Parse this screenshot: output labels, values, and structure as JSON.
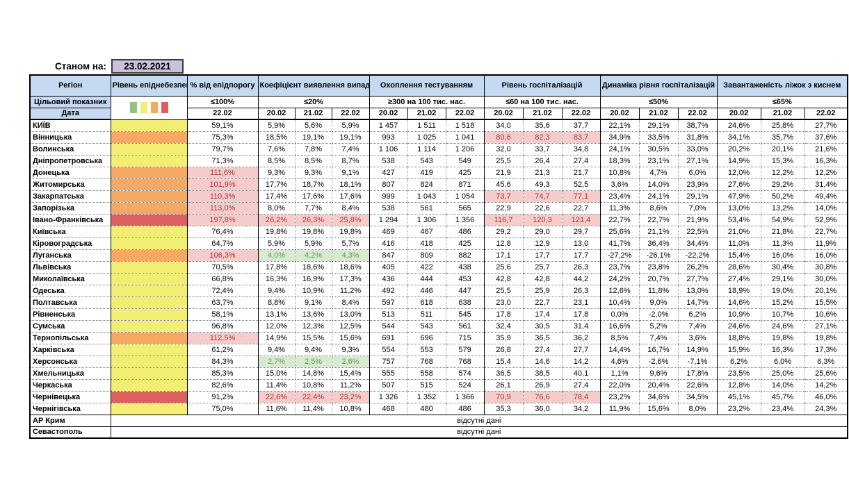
{
  "meta": {
    "as_of_label": "Станом на:",
    "as_of_date": "23.02.2021"
  },
  "colors": {
    "header_blue": "#c5daf0",
    "date_lavender": "#ccc1da",
    "level_yellow": "#f2ee73",
    "level_orange": "#f5a962",
    "level_red": "#dd5f5f",
    "level_green": "#93c47d",
    "alert_bg": "#f4cccc",
    "alert_text": "#b03434",
    "good_bg": "#d9ead3",
    "good_text": "#5f9e4f"
  },
  "table": {
    "region_header": "Регіон",
    "target_row_label": "Цільовий показник",
    "date_row_label": "Дата",
    "legend_colors": [
      "#93c47d",
      "#f2ee73",
      "#f5a962",
      "#dd5f5f"
    ],
    "groups": [
      {
        "title": "Рівень епіднебезпеки",
        "kind": "legend",
        "target": "",
        "dates": []
      },
      {
        "title": "% від епідпорогу",
        "kind": "single",
        "target": "≤100%",
        "dates": [
          "22.02"
        ]
      },
      {
        "title": "Коефіцієнт виявлення випадків інфікування",
        "kind": "triple",
        "target": "≤20%",
        "dates": [
          "20.02",
          "21.02",
          "22.02"
        ]
      },
      {
        "title": "Охоплення тестуванням",
        "kind": "triple",
        "target": "≥300 на 100 тис. нас.",
        "dates": [
          "20.02",
          "21.02",
          "22.02"
        ]
      },
      {
        "title": "Рівень госпіталізацій",
        "kind": "triple",
        "target": "≤60 на 100 тис. нас.",
        "dates": [
          "20.02",
          "21.02",
          "22.02"
        ]
      },
      {
        "title": "Динаміка рівня госпіталізацій",
        "kind": "triple",
        "target": "≤50%",
        "dates": [
          "20.02",
          "21.02",
          "22.02"
        ]
      },
      {
        "title": "Завантаженість ліжок з киснем",
        "kind": "triple",
        "target": "≤65%",
        "dates": [
          "20.02",
          "21.02",
          "22.02"
        ]
      }
    ],
    "rows": [
      {
        "region": "КИЇВ",
        "level": "yellow",
        "threshold": "59,1%",
        "threshold_style": "",
        "detection": [
          "5,9%",
          "5,6%",
          "5,9%"
        ],
        "detection_style": "",
        "testing": [
          "1 457",
          "1 511",
          "1 518"
        ],
        "hosp": [
          "34,0",
          "35,6",
          "37,7"
        ],
        "hosp_style": "",
        "dynamics": [
          "22,1%",
          "29,1%",
          "38,7%"
        ],
        "oxygen": [
          "24,6%",
          "25,8%",
          "27,7%"
        ]
      },
      {
        "region": "Вінницька",
        "level": "orange",
        "threshold": "75,3%",
        "threshold_style": "",
        "detection": [
          "18,5%",
          "19,1%",
          "19,1%"
        ],
        "detection_style": "",
        "testing": [
          "993",
          "1 025",
          "1 041"
        ],
        "hosp": [
          "80,6",
          "82,3",
          "83,7"
        ],
        "hosp_style": "alert",
        "dynamics": [
          "34,9%",
          "33,5%",
          "31,8%"
        ],
        "oxygen": [
          "34,1%",
          "35,7%",
          "37,6%"
        ]
      },
      {
        "region": "Волинська",
        "level": "yellow",
        "threshold": "79,7%",
        "threshold_style": "",
        "detection": [
          "7,6%",
          "7,8%",
          "7,4%"
        ],
        "detection_style": "",
        "testing": [
          "1 106",
          "1 114",
          "1 206"
        ],
        "hosp": [
          "32,0",
          "33,7",
          "34,8"
        ],
        "hosp_style": "",
        "dynamics": [
          "24,1%",
          "30,5%",
          "33,0%"
        ],
        "oxygen": [
          "20,2%",
          "20,1%",
          "21,6%"
        ]
      },
      {
        "region": "Дніпропетровська",
        "level": "yellow",
        "threshold": "71,3%",
        "threshold_style": "",
        "detection": [
          "8,5%",
          "8,5%",
          "8,7%"
        ],
        "detection_style": "",
        "testing": [
          "538",
          "543",
          "549"
        ],
        "hosp": [
          "25,5",
          "26,4",
          "27,4"
        ],
        "hosp_style": "",
        "dynamics": [
          "18,3%",
          "23,1%",
          "27,1%"
        ],
        "oxygen": [
          "14,9%",
          "15,3%",
          "16,3%"
        ]
      },
      {
        "region": "Донецька",
        "level": "orange",
        "threshold": "111,6%",
        "threshold_style": "alert",
        "detection": [
          "9,3%",
          "9,3%",
          "9,1%"
        ],
        "detection_style": "",
        "testing": [
          "427",
          "419",
          "425"
        ],
        "hosp": [
          "21,9",
          "21,3",
          "21,7"
        ],
        "hosp_style": "",
        "dynamics": [
          "10,8%",
          "4,7%",
          "6,0%"
        ],
        "oxygen": [
          "12,0%",
          "12,2%",
          "12,2%"
        ]
      },
      {
        "region": "Житомирська",
        "level": "orange",
        "threshold": "101,9%",
        "threshold_style": "alert",
        "detection": [
          "17,7%",
          "18,7%",
          "18,1%"
        ],
        "detection_style": "",
        "testing": [
          "807",
          "824",
          "871"
        ],
        "hosp": [
          "45,6",
          "49,3",
          "52,5"
        ],
        "hosp_style": "",
        "dynamics": [
          "3,6%",
          "14,0%",
          "23,9%"
        ],
        "oxygen": [
          "27,6%",
          "29,2%",
          "31,4%"
        ]
      },
      {
        "region": "Закарпатська",
        "level": "orange",
        "threshold": "110,3%",
        "threshold_style": "alert",
        "detection": [
          "17,4%",
          "17,6%",
          "17,6%"
        ],
        "detection_style": "",
        "testing": [
          "999",
          "1 043",
          "1 054"
        ],
        "hosp": [
          "73,7",
          "74,7",
          "77,1"
        ],
        "hosp_style": "alert",
        "dynamics": [
          "23,4%",
          "24,1%",
          "29,1%"
        ],
        "oxygen": [
          "47,9%",
          "50,2%",
          "49,4%"
        ]
      },
      {
        "region": "Запорізька",
        "level": "orange",
        "threshold": "113,0%",
        "threshold_style": "alert",
        "detection": [
          "8,0%",
          "7,7%",
          "8,4%"
        ],
        "detection_style": "",
        "testing": [
          "538",
          "561",
          "565"
        ],
        "hosp": [
          "22,9",
          "22,6",
          "22,7"
        ],
        "hosp_style": "",
        "dynamics": [
          "11,3%",
          "8,6%",
          "7,0%"
        ],
        "oxygen": [
          "13,0%",
          "13,2%",
          "14,0%"
        ]
      },
      {
        "region": "Івано-Франківська",
        "level": "red",
        "threshold": "197,8%",
        "threshold_style": "alert",
        "detection": [
          "26,2%",
          "26,3%",
          "25,8%"
        ],
        "detection_style": "alert",
        "testing": [
          "1 294",
          "1 306",
          "1 356"
        ],
        "hosp": [
          "116,7",
          "120,3",
          "121,4"
        ],
        "hosp_style": "alert",
        "dynamics": [
          "22,7%",
          "22,7%",
          "21,9%"
        ],
        "oxygen": [
          "53,4%",
          "54,9%",
          "52,9%"
        ]
      },
      {
        "region": "Київська",
        "level": "yellow",
        "threshold": "76,4%",
        "threshold_style": "",
        "detection": [
          "19,8%",
          "19,8%",
          "19,8%"
        ],
        "detection_style": "",
        "testing": [
          "469",
          "467",
          "486"
        ],
        "hosp": [
          "29,2",
          "29,0",
          "29,7"
        ],
        "hosp_style": "",
        "dynamics": [
          "25,6%",
          "21,1%",
          "22,5%"
        ],
        "oxygen": [
          "21,0%",
          "21,8%",
          "22,7%"
        ]
      },
      {
        "region": "Кіровоградська",
        "level": "yellow",
        "threshold": "64,7%",
        "threshold_style": "",
        "detection": [
          "5,9%",
          "5,9%",
          "5,7%"
        ],
        "detection_style": "",
        "testing": [
          "416",
          "418",
          "425"
        ],
        "hosp": [
          "12,8",
          "12,9",
          "13,0"
        ],
        "hosp_style": "",
        "dynamics": [
          "41,7%",
          "36,4%",
          "34,4%"
        ],
        "oxygen": [
          "11,0%",
          "11,3%",
          "11,9%"
        ]
      },
      {
        "region": "Луганська",
        "level": "orange",
        "threshold": "106,3%",
        "threshold_style": "alert",
        "detection": [
          "4,0%",
          "4,2%",
          "4,3%"
        ],
        "detection_style": "good",
        "testing": [
          "847",
          "809",
          "882"
        ],
        "hosp": [
          "17,1",
          "17,7",
          "17,7"
        ],
        "hosp_style": "",
        "dynamics": [
          "-27,2%",
          "-26,1%",
          "-22,2%"
        ],
        "oxygen": [
          "15,4%",
          "16,0%",
          "16,0%"
        ]
      },
      {
        "region": "Львівська",
        "level": "yellow",
        "threshold": "70,5%",
        "threshold_style": "",
        "detection": [
          "17,8%",
          "18,6%",
          "18,6%"
        ],
        "detection_style": "",
        "testing": [
          "405",
          "422",
          "438"
        ],
        "hosp": [
          "25,6",
          "25,7",
          "26,3"
        ],
        "hosp_style": "",
        "dynamics": [
          "23,7%",
          "23,8%",
          "26,2%"
        ],
        "oxygen": [
          "28,6%",
          "30,4%",
          "30,8%"
        ]
      },
      {
        "region": "Миколаївська",
        "level": "yellow",
        "threshold": "66,8%",
        "threshold_style": "",
        "detection": [
          "16,3%",
          "16,9%",
          "17,3%"
        ],
        "detection_style": "",
        "testing": [
          "436",
          "444",
          "453"
        ],
        "hosp": [
          "42,8",
          "42,8",
          "44,2"
        ],
        "hosp_style": "",
        "dynamics": [
          "24,2%",
          "20,7%",
          "27,7%"
        ],
        "oxygen": [
          "27,4%",
          "29,1%",
          "30,0%"
        ]
      },
      {
        "region": "Одеська",
        "level": "yellow",
        "threshold": "72,4%",
        "threshold_style": "",
        "detection": [
          "9,4%",
          "10,9%",
          "11,2%"
        ],
        "detection_style": "",
        "testing": [
          "492",
          "446",
          "447"
        ],
        "hosp": [
          "25,5",
          "25,9",
          "26,3"
        ],
        "hosp_style": "",
        "dynamics": [
          "12,6%",
          "11,8%",
          "13,0%"
        ],
        "oxygen": [
          "18,9%",
          "19,0%",
          "20,1%"
        ]
      },
      {
        "region": "Полтавська",
        "level": "yellow",
        "threshold": "63,7%",
        "threshold_style": "",
        "detection": [
          "8,8%",
          "9,1%",
          "8,4%"
        ],
        "detection_style": "",
        "testing": [
          "597",
          "618",
          "638"
        ],
        "hosp": [
          "23,0",
          "22,7",
          "23,1"
        ],
        "hosp_style": "",
        "dynamics": [
          "10,4%",
          "9,0%",
          "14,7%"
        ],
        "oxygen": [
          "14,6%",
          "15,2%",
          "15,5%"
        ]
      },
      {
        "region": "Рівненська",
        "level": "yellow",
        "threshold": "58,1%",
        "threshold_style": "",
        "detection": [
          "13,1%",
          "13,6%",
          "13,0%"
        ],
        "detection_style": "",
        "testing": [
          "513",
          "511",
          "545"
        ],
        "hosp": [
          "17,8",
          "17,4",
          "17,8"
        ],
        "hosp_style": "",
        "dynamics": [
          "0,0%",
          "-2,0%",
          "6,2%"
        ],
        "oxygen": [
          "10,9%",
          "10,7%",
          "10,6%"
        ]
      },
      {
        "region": "Сумська",
        "level": "yellow",
        "threshold": "96,8%",
        "threshold_style": "",
        "detection": [
          "12,0%",
          "12,3%",
          "12,5%"
        ],
        "detection_style": "",
        "testing": [
          "544",
          "543",
          "561"
        ],
        "hosp": [
          "32,4",
          "30,5",
          "31,4"
        ],
        "hosp_style": "",
        "dynamics": [
          "16,6%",
          "5,2%",
          "7,4%"
        ],
        "oxygen": [
          "24,6%",
          "24,6%",
          "27,1%"
        ]
      },
      {
        "region": "Тернопільська",
        "level": "orange",
        "threshold": "112,5%",
        "threshold_style": "alert",
        "detection": [
          "14,9%",
          "15,5%",
          "15,6%"
        ],
        "detection_style": "",
        "testing": [
          "691",
          "696",
          "715"
        ],
        "hosp": [
          "35,9",
          "36,5",
          "36,2"
        ],
        "hosp_style": "",
        "dynamics": [
          "8,5%",
          "7,4%",
          "3,6%"
        ],
        "oxygen": [
          "18,8%",
          "19,8%",
          "19,8%"
        ]
      },
      {
        "region": "Харківська",
        "level": "yellow",
        "threshold": "61,2%",
        "threshold_style": "",
        "detection": [
          "9,4%",
          "9,4%",
          "9,3%"
        ],
        "detection_style": "",
        "testing": [
          "554",
          "553",
          "579"
        ],
        "hosp": [
          "26,8",
          "27,4",
          "27,7"
        ],
        "hosp_style": "",
        "dynamics": [
          "14,4%",
          "16,7%",
          "14,9%"
        ],
        "oxygen": [
          "15,9%",
          "16,3%",
          "17,3%"
        ]
      },
      {
        "region": "Херсонська",
        "level": "yellow",
        "threshold": "84,3%",
        "threshold_style": "",
        "detection": [
          "2,7%",
          "2,5%",
          "2,6%"
        ],
        "detection_style": "good",
        "testing": [
          "757",
          "768",
          "768"
        ],
        "hosp": [
          "15,4",
          "14,6",
          "14,2"
        ],
        "hosp_style": "",
        "dynamics": [
          "4,6%",
          "-2,6%",
          "-7,1%"
        ],
        "oxygen": [
          "6,2%",
          "6,0%",
          "6,3%"
        ]
      },
      {
        "region": "Хмельницька",
        "level": "yellow",
        "threshold": "85,3%",
        "threshold_style": "",
        "detection": [
          "15,0%",
          "14,8%",
          "15,4%"
        ],
        "detection_style": "",
        "testing": [
          "555",
          "558",
          "574"
        ],
        "hosp": [
          "36,5",
          "38,5",
          "40,1"
        ],
        "hosp_style": "",
        "dynamics": [
          "1,1%",
          "9,6%",
          "17,8%"
        ],
        "oxygen": [
          "23,5%",
          "25,0%",
          "25,6%"
        ]
      },
      {
        "region": "Черкаська",
        "level": "yellow",
        "threshold": "82,6%",
        "threshold_style": "",
        "detection": [
          "11,4%",
          "10,8%",
          "11,2%"
        ],
        "detection_style": "",
        "testing": [
          "507",
          "515",
          "524"
        ],
        "hosp": [
          "26,1",
          "26,9",
          "27,4"
        ],
        "hosp_style": "",
        "dynamics": [
          "22,0%",
          "20,4%",
          "22,6%"
        ],
        "oxygen": [
          "12,8%",
          "14,0%",
          "14,2%"
        ]
      },
      {
        "region": "Чернівецька",
        "level": "red",
        "threshold": "91,2%",
        "threshold_style": "",
        "detection": [
          "22,6%",
          "22,4%",
          "23,2%"
        ],
        "detection_style": "alert",
        "testing": [
          "1 326",
          "1 352",
          "1 366"
        ],
        "hosp": [
          "70,9",
          "76,6",
          "78,4"
        ],
        "hosp_style": "alert",
        "dynamics": [
          "23,2%",
          "34,6%",
          "34,5%"
        ],
        "oxygen": [
          "45,1%",
          "45,7%",
          "46,0%"
        ]
      },
      {
        "region": "Чернігівська",
        "level": "yellow",
        "threshold": "75,0%",
        "threshold_style": "",
        "detection": [
          "11,6%",
          "11,4%",
          "10,8%"
        ],
        "detection_style": "",
        "testing": [
          "468",
          "480",
          "486"
        ],
        "hosp": [
          "35,3",
          "36,0",
          "34,2"
        ],
        "hosp_style": "",
        "dynamics": [
          "11,9%",
          "15,6%",
          "8,0%"
        ],
        "oxygen": [
          "23,2%",
          "23,4%",
          "24,3%"
        ]
      }
    ],
    "no_data_rows": [
      {
        "region": "АР Крим",
        "text": "відсутні дані"
      },
      {
        "region": "Севастополь",
        "text": "відсутні дані"
      }
    ]
  }
}
